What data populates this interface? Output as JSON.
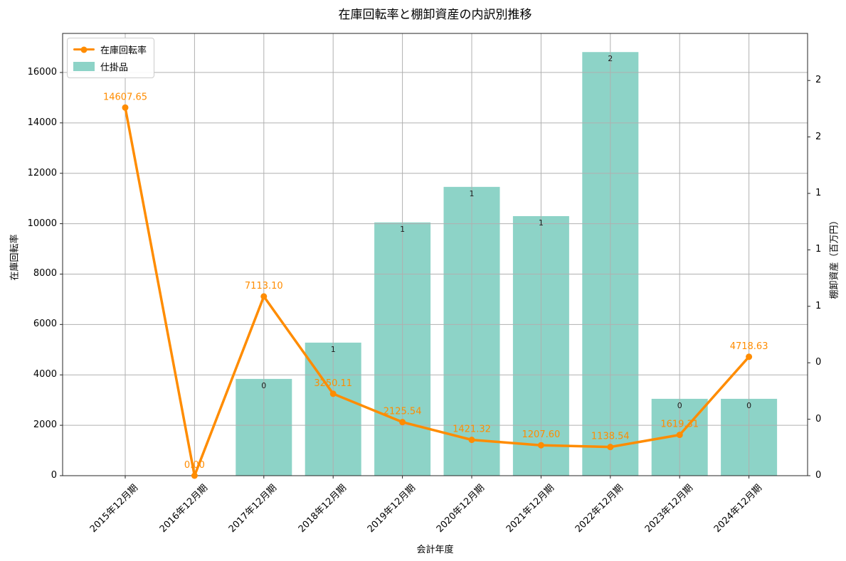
{
  "title": "在庫回転率と棚卸資産の内訳別推移",
  "colors": {
    "line": "#ff8c00",
    "bar": "#8dd3c7",
    "grid": "#b0b0b0",
    "spine": "#262626",
    "bar_label_text": "#1a1a1a",
    "text": "#000000"
  },
  "legend": {
    "items": [
      {
        "label": "在庫回転率",
        "marker": "line"
      },
      {
        "label": "仕掛品",
        "marker": "patch"
      }
    ]
  },
  "axes": {
    "x": {
      "label": "会計年度",
      "tick_labels": [
        "2015年12月期",
        "2016年12月期",
        "2017年12月期",
        "2018年12月期",
        "2019年12月期",
        "2020年12月期",
        "2021年12月期",
        "2022年12月期",
        "2023年12月期",
        "2024年12月期"
      ]
    },
    "y_left": {
      "label": "在庫回転率",
      "tick_labels": [
        "0",
        "2000",
        "4000",
        "6000",
        "8000",
        "10000",
        "12000",
        "14000",
        "16000"
      ]
    },
    "y_right": {
      "label": "棚卸資産（百万円）",
      "tick_labels_bottom_to_top": [
        "0",
        "0",
        "0",
        "1",
        "1",
        "1",
        "2",
        "2"
      ]
    }
  },
  "chart_data": {
    "type": "line+bar",
    "title": "在庫回転率と棚卸資産の内訳別推移",
    "xlabel": "会計年度",
    "ylabel_left": "在庫回転率",
    "ylabel_right": "棚卸資産（百万円）",
    "categories": [
      "2015年12月期",
      "2016年12月期",
      "2017年12月期",
      "2018年12月期",
      "2019年12月期",
      "2020年12月期",
      "2021年12月期",
      "2022年12月期",
      "2023年12月期",
      "2024年12月期"
    ],
    "ylim_left": [
      0,
      17550
    ],
    "grid": true,
    "legend_position": "upper left",
    "series": [
      {
        "name": "在庫回転率",
        "type": "line",
        "axis": "left",
        "color": "#ff8c00",
        "values": [
          14607.65,
          0.0,
          7113.1,
          3250.11,
          2125.54,
          1421.32,
          1207.6,
          1138.54,
          1619.31,
          4718.63
        ],
        "point_labels": [
          "14607.65",
          "0.00",
          "7113.10",
          "3250.11",
          "2125.54",
          "1421.32",
          "1207.60",
          "1138.54",
          "1619.31",
          "4718.63"
        ]
      },
      {
        "name": "仕掛品",
        "type": "bar",
        "axis": "right",
        "color": "#8dd3c7",
        "values_left_axis_scale": [
          null,
          null,
          3840,
          5280,
          10050,
          11460,
          10300,
          16810,
          3050,
          3050
        ],
        "bar_labels": [
          null,
          null,
          "0",
          "1",
          "1",
          "1",
          "1",
          "2",
          "0",
          "0"
        ]
      }
    ]
  }
}
